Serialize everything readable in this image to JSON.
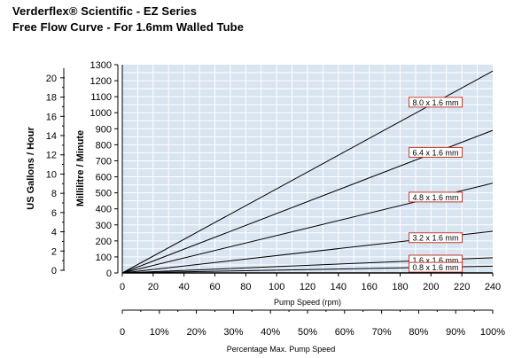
{
  "title": "Verderflex® Scientific - EZ Series",
  "subtitle": "Free Flow Curve - For 1.6mm Walled Tube",
  "chart_data": {
    "type": "line",
    "x": [
      0,
      240
    ],
    "xlabel": "Pump Speed (rpm)",
    "xlim": [
      0,
      240
    ],
    "xticks": [
      "0",
      "20",
      "40",
      "60",
      "80",
      "100",
      "120",
      "140",
      "160",
      "180",
      "200",
      "220",
      "240"
    ],
    "ylabel": "Millilitre / Minute",
    "ylim": [
      0,
      1300
    ],
    "yticks": [
      "0",
      "100",
      "200",
      "300",
      "400",
      "500",
      "600",
      "700",
      "800",
      "900",
      "1000",
      "1100",
      "1200",
      "1300"
    ],
    "ylabel2": "US Gallons / Hour",
    "y2ticks": [
      "0",
      "2",
      "4",
      "6",
      "8",
      "10",
      "12",
      "14",
      "16",
      "18",
      "20"
    ],
    "x2label": "Percentage Max. Pump Speed",
    "x2ticks": [
      "0",
      "10%",
      "20%",
      "30%",
      "40%",
      "50%",
      "60%",
      "70%",
      "80%",
      "90%",
      "100%"
    ],
    "grid": true,
    "series": [
      {
        "name": "8.0 x 1.6 mm",
        "values": [
          0,
          1260
        ]
      },
      {
        "name": "6.4 x 1.6 mm",
        "values": [
          0,
          890
        ]
      },
      {
        "name": "4.8 x 1.6 mm",
        "values": [
          0,
          560
        ]
      },
      {
        "name": "3.2 x 1.6 mm",
        "values": [
          0,
          260
        ]
      },
      {
        "name": "1.6 x 1.6 mm",
        "values": [
          0,
          95
        ]
      },
      {
        "name": "0.8 x 1.6 mm",
        "values": [
          0,
          42
        ]
      }
    ]
  }
}
